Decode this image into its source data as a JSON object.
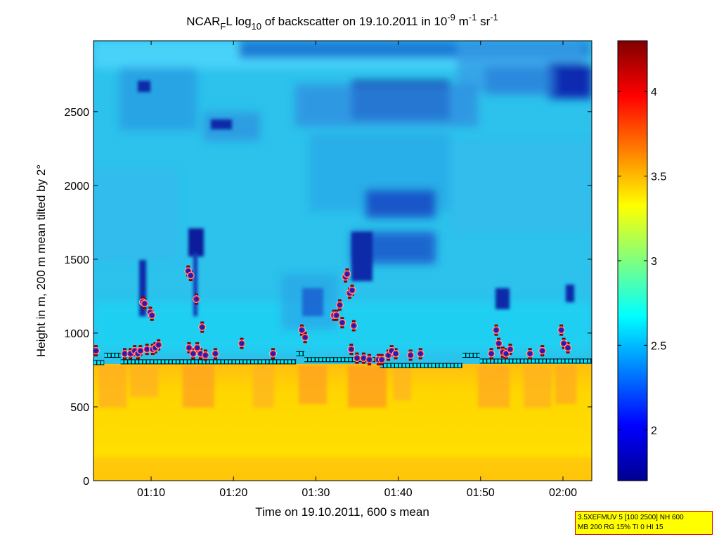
{
  "chart_data": {
    "type": "heatmap",
    "title": {
      "prefix": "NCAR",
      "sub_1": "F",
      "mid_1": "L log",
      "sub_2": "10",
      "mid_2": " of backscatter on 19.10.2011 in 10",
      "sup_1": "-9",
      "mid_3": " m",
      "sup_2": "-1",
      "mid_4": " sr",
      "sup_3": "-1"
    },
    "xlabel": "Time on 19.10.2011, 600 s mean",
    "ylabel": "Height in m, 200 m mean tilted by 2°",
    "x_ticks": [
      {
        "label": "01:10",
        "minutes": 70
      },
      {
        "label": "01:20",
        "minutes": 80
      },
      {
        "label": "01:30",
        "minutes": 90
      },
      {
        "label": "01:40",
        "minutes": 100
      },
      {
        "label": "01:50",
        "minutes": 110
      },
      {
        "label": "02:00",
        "minutes": 120
      }
    ],
    "xlim_minutes": [
      63,
      123.5
    ],
    "y_ticks": [
      0,
      500,
      1000,
      1500,
      2000,
      2500
    ],
    "ylim": [
      0,
      2980
    ],
    "colorbar": {
      "ticks": [
        2,
        2.5,
        3,
        3.5,
        4
      ],
      "range": [
        1.7,
        4.3
      ],
      "colormap": "jet"
    },
    "colors": {
      "boundary_layer": "#ffd400",
      "free_troposphere": "#22c8f0",
      "cloud_base_marker_fill": "#1e1ebe",
      "cloud_base_marker_ring": "#ff2a2a",
      "layer_top_marker": "#00e5ff"
    },
    "cloud_base_points": [
      {
        "t": 63.3,
        "h": 880
      },
      {
        "t": 66.8,
        "h": 860
      },
      {
        "t": 67.5,
        "h": 860
      },
      {
        "t": 68.0,
        "h": 880
      },
      {
        "t": 68.4,
        "h": 860
      },
      {
        "t": 68.7,
        "h": 880
      },
      {
        "t": 69.0,
        "h": 1210
      },
      {
        "t": 69.2,
        "h": 1200
      },
      {
        "t": 69.5,
        "h": 890
      },
      {
        "t": 69.9,
        "h": 1140
      },
      {
        "t": 70.1,
        "h": 1120
      },
      {
        "t": 70.2,
        "h": 890
      },
      {
        "t": 70.5,
        "h": 900
      },
      {
        "t": 70.9,
        "h": 920
      },
      {
        "t": 74.5,
        "h": 1420
      },
      {
        "t": 74.6,
        "h": 900
      },
      {
        "t": 74.8,
        "h": 1390
      },
      {
        "t": 75.1,
        "h": 860
      },
      {
        "t": 75.5,
        "h": 1230
      },
      {
        "t": 75.6,
        "h": 900
      },
      {
        "t": 76.0,
        "h": 860
      },
      {
        "t": 76.2,
        "h": 1040
      },
      {
        "t": 76.6,
        "h": 850
      },
      {
        "t": 77.8,
        "h": 860
      },
      {
        "t": 81.0,
        "h": 930
      },
      {
        "t": 84.8,
        "h": 860
      },
      {
        "t": 88.3,
        "h": 1020
      },
      {
        "t": 88.7,
        "h": 970
      },
      {
        "t": 92.2,
        "h": 1120
      },
      {
        "t": 92.5,
        "h": 1120
      },
      {
        "t": 92.9,
        "h": 1190
      },
      {
        "t": 93.2,
        "h": 1070
      },
      {
        "t": 93.6,
        "h": 1380
      },
      {
        "t": 93.8,
        "h": 1400
      },
      {
        "t": 94.1,
        "h": 1270
      },
      {
        "t": 94.3,
        "h": 890
      },
      {
        "t": 94.4,
        "h": 1290
      },
      {
        "t": 94.6,
        "h": 1050
      },
      {
        "t": 95.0,
        "h": 830
      },
      {
        "t": 95.8,
        "h": 830
      },
      {
        "t": 96.5,
        "h": 820
      },
      {
        "t": 97.6,
        "h": 820
      },
      {
        "t": 98.0,
        "h": 820
      },
      {
        "t": 98.8,
        "h": 850
      },
      {
        "t": 99.2,
        "h": 880
      },
      {
        "t": 99.7,
        "h": 860
      },
      {
        "t": 101.5,
        "h": 850
      },
      {
        "t": 102.7,
        "h": 860
      },
      {
        "t": 111.3,
        "h": 860
      },
      {
        "t": 111.9,
        "h": 1020
      },
      {
        "t": 112.2,
        "h": 930
      },
      {
        "t": 112.7,
        "h": 870
      },
      {
        "t": 113.1,
        "h": 860
      },
      {
        "t": 113.6,
        "h": 890
      },
      {
        "t": 116.0,
        "h": 860
      },
      {
        "t": 117.5,
        "h": 880
      },
      {
        "t": 119.8,
        "h": 1020
      },
      {
        "t": 120.1,
        "h": 930
      },
      {
        "t": 120.6,
        "h": 900
      }
    ],
    "layer_top_segments": [
      {
        "t0": 63,
        "t1": 64.3,
        "h": 800
      },
      {
        "t0": 64.3,
        "t1": 66.3,
        "h": 850
      },
      {
        "t0": 66.3,
        "t1": 87.6,
        "h": 805
      },
      {
        "t0": 87.6,
        "t1": 88.6,
        "h": 860
      },
      {
        "t0": 88.6,
        "t1": 97.8,
        "h": 820
      },
      {
        "t0": 97.8,
        "t1": 107.8,
        "h": 780
      },
      {
        "t0": 107.8,
        "t1": 109.9,
        "h": 850
      },
      {
        "t0": 109.9,
        "t1": 123.5,
        "h": 810
      }
    ],
    "params": {
      "line_1": "3.5XEFMUV 5 [100 2500] NH 600",
      "line_2": "MB 200 RG 15% TI 0 HI 15"
    }
  }
}
